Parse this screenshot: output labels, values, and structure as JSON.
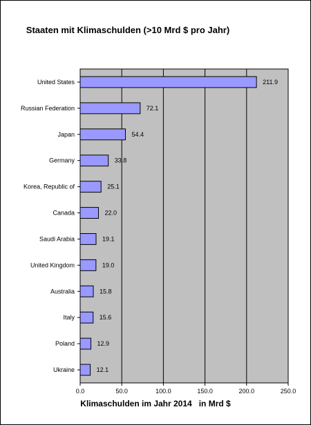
{
  "chart_data": {
    "type": "bar",
    "orientation": "horizontal",
    "title": "Staaten mit Klimaschulden (>10 Mrd $ pro Jahr)",
    "xlabel": "Klimaschulden im Jahr 2014   in Mrd $",
    "ylabel": "",
    "categories": [
      "United States",
      "Russian Federation",
      "Japan",
      "Germany",
      "Korea, Republic of",
      "Canada",
      "Saudi Arabia",
      "United Kingdom",
      "Australia",
      "Italy",
      "Poland",
      "Ukraine"
    ],
    "values": [
      211.9,
      72.1,
      54.4,
      33.8,
      25.1,
      22.0,
      19.1,
      19.0,
      15.8,
      15.6,
      12.9,
      12.1
    ],
    "value_labels": [
      "211.9",
      "72.1",
      "54.4",
      "33.8",
      "25.1",
      "22.0",
      "19.1",
      "19.0",
      "15.8",
      "15.6",
      "12.9",
      "12.1"
    ],
    "xlim": [
      0,
      250
    ],
    "xticks": [
      "0.0",
      "50.0",
      "100.0",
      "150.0",
      "200.0",
      "250.0"
    ],
    "grid": "vertical",
    "colors": {
      "bar": "#9999ff",
      "plot_bg": "#c0c0c0",
      "outline": "#000000"
    }
  }
}
